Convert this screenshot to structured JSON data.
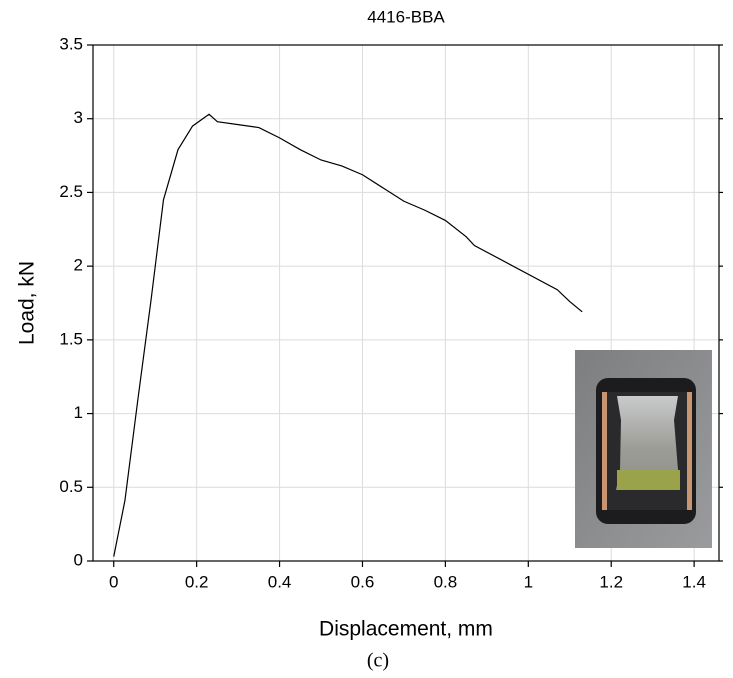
{
  "chart_data": {
    "type": "line",
    "title": "4416-BBA",
    "x_label": "Displacement, mm",
    "y_label": "Load, kN",
    "caption": "(c)",
    "xlim": [
      -0.05,
      1.46
    ],
    "ylim": [
      0,
      3.5
    ],
    "xticks": [
      0,
      0.2,
      0.4,
      0.6,
      0.8,
      1,
      1.2,
      1.4
    ],
    "yticks": [
      0,
      0.5,
      1,
      1.5,
      2,
      2.5,
      3,
      3.5
    ],
    "grid": true,
    "series": [
      {
        "color": "#000000",
        "x": [
          0,
          0.027,
          0.058,
          0.09,
          0.12,
          0.155,
          0.19,
          0.23,
          0.25,
          0.3,
          0.35,
          0.4,
          0.45,
          0.5,
          0.55,
          0.6,
          0.65,
          0.7,
          0.75,
          0.8,
          0.85,
          0.87,
          1.07,
          1.1,
          1.13
        ],
        "values": [
          0.03,
          0.41,
          1.09,
          1.77,
          2.45,
          2.79,
          2.95,
          3.03,
          2.98,
          2.96,
          2.94,
          2.87,
          2.79,
          2.72,
          2.68,
          2.62,
          2.53,
          2.44,
          2.38,
          2.31,
          2.2,
          2.14,
          1.84,
          1.76,
          1.69
        ]
      }
    ]
  }
}
